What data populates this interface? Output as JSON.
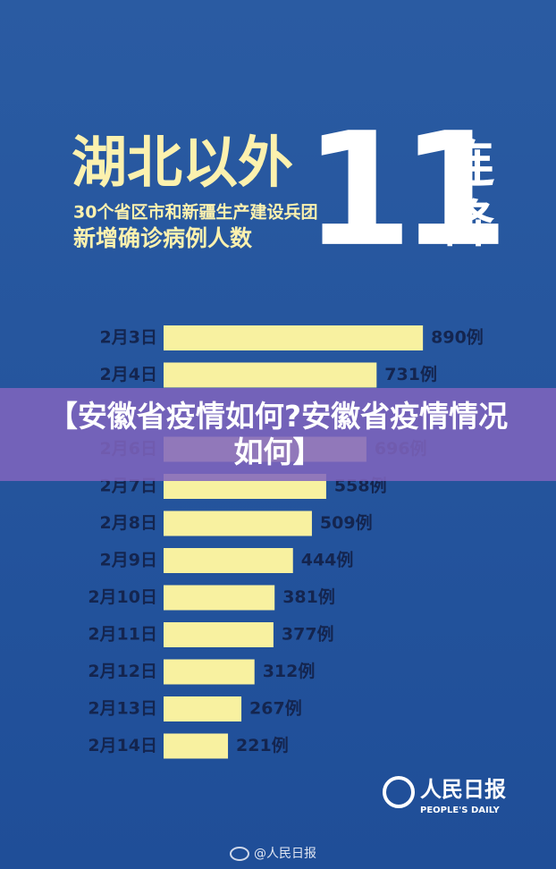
{
  "chart_data": {
    "type": "bar",
    "orientation": "horizontal",
    "title": "湖北以外",
    "subtitle": [
      "30个省区市和新疆生产建设兵团",
      "新增确诊病例人数"
    ],
    "headline_number": "11",
    "headline_text": [
      "连",
      "降"
    ],
    "categories": [
      "2月3日",
      "2月4日",
      null,
      "2月6日",
      "2月7日",
      "2月8日",
      "2月9日",
      "2月10日",
      "2月11日",
      "2月12日",
      "2月13日",
      "2月14日"
    ],
    "values": [
      890,
      731,
      null,
      696,
      558,
      509,
      444,
      381,
      377,
      312,
      267,
      221
    ],
    "value_labels": [
      "890例",
      "731例",
      null,
      "696例",
      "558例",
      "509例",
      "444例",
      "381例",
      "377例",
      "312例",
      "267例",
      "221例"
    ],
    "color": "#f8f1a0"
  },
  "overlay": {
    "text": "【安徽省疫情如何?安徽省疫情情况如何】"
  },
  "logo": {
    "name": "人民日报",
    "english": "PEOPLE'S DAILY"
  },
  "footer": {
    "text": "@人民日报"
  }
}
